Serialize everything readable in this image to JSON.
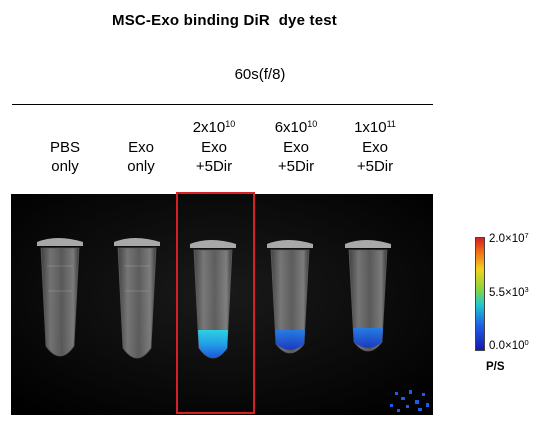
{
  "title": "MSC-Exo binding DiR  dye test",
  "condition": "60s(f/8)",
  "columns": [
    {
      "line1": "",
      "line1_sup": "",
      "line2": "PBS",
      "line3": "only"
    },
    {
      "line1": "",
      "line1_sup": "",
      "line2": "Exo",
      "line3": "only"
    },
    {
      "line1": "2x10",
      "line1_sup": "10",
      "line2": "Exo",
      "line3": "+5Dir"
    },
    {
      "line1": "6x10",
      "line1_sup": "10",
      "line2": "Exo",
      "line3": "+5Dir"
    },
    {
      "line1": "1x10",
      "line1_sup": "11",
      "line2": "Exo",
      "line3": "+5Dir"
    }
  ],
  "colorbar": {
    "max_base": "2.0×10",
    "max_exp": "7",
    "mid_base": "5.5×10",
    "mid_exp": "3",
    "min_base": "0.0×10",
    "min_exp": "0",
    "unit": "P/S"
  },
  "highlight_color": "#d71f26"
}
